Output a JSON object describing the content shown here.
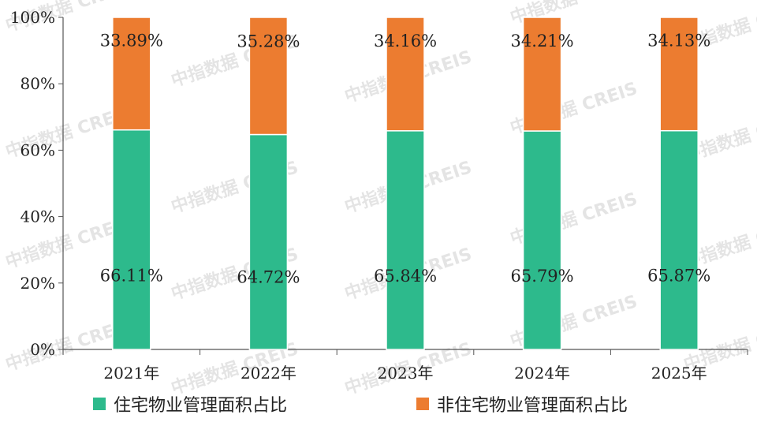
{
  "chart_data": {
    "type": "bar",
    "stacked": true,
    "categories": [
      "2021年",
      "2022年",
      "2023年",
      "2024年",
      "2025年"
    ],
    "series": [
      {
        "name": "住宅物业管理面积占比",
        "color": "#2dba8c",
        "values": [
          66.11,
          64.72,
          65.84,
          65.79,
          65.87
        ],
        "labels": [
          "66.11%",
          "64.72%",
          "65.84%",
          "65.79%",
          "65.87%"
        ]
      },
      {
        "name": "非住宅物业管理面积占比",
        "color": "#ec7c30",
        "values": [
          33.89,
          35.28,
          34.16,
          34.21,
          34.13
        ],
        "labels": [
          "33.89%",
          "35.28%",
          "34.16%",
          "34.21%",
          "34.13%"
        ]
      }
    ],
    "yticks": [
      "0%",
      "20%",
      "40%",
      "60%",
      "80%",
      "100%"
    ],
    "ylim": [
      0,
      100
    ],
    "grid": false,
    "legend_position": "bottom",
    "watermark": "中指数据 CREIS"
  }
}
